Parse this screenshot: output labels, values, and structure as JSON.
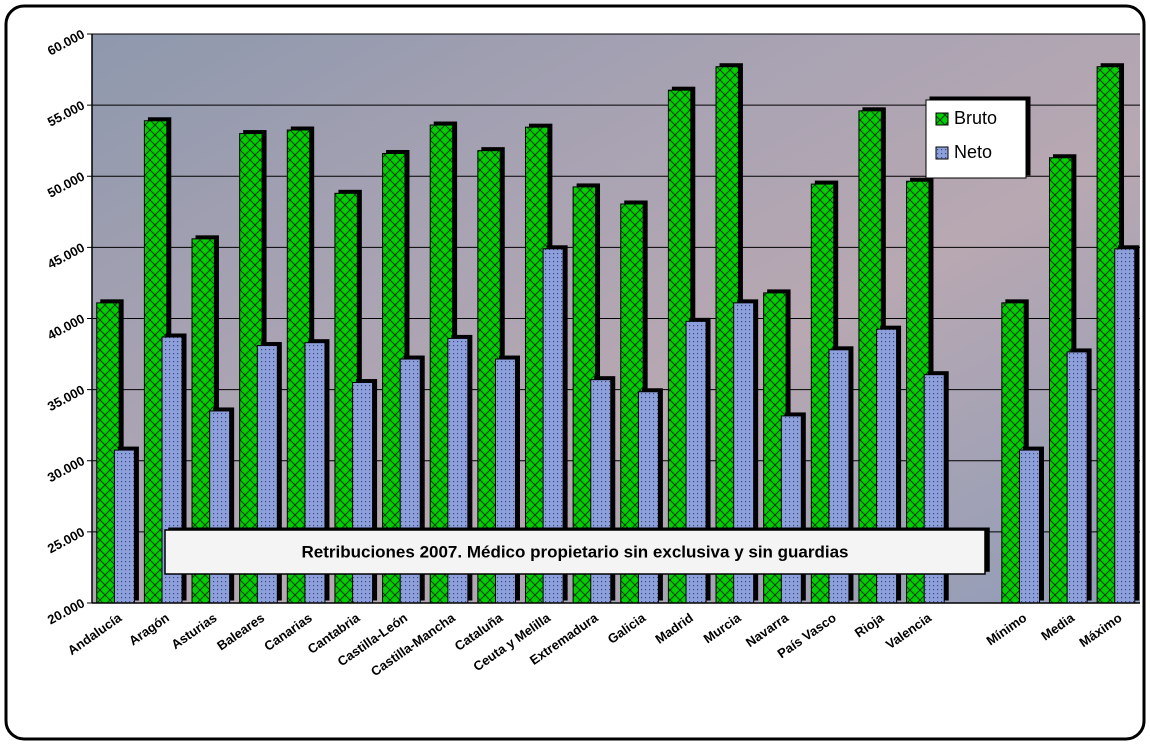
{
  "chart_data": {
    "type": "bar",
    "title": "Retribuciones 2007. Médico propietario sin exclusiva y sin guardias",
    "categories": [
      "Andalucía",
      "Aragón",
      "Asturias",
      "Baleares",
      "Canarias",
      "Cantabria",
      "Castilla-León",
      "Castilla-Mancha",
      "Cataluña",
      "Ceuta y Melilla",
      "Extremadura",
      "Galicia",
      "Madrid",
      "Murcia",
      "Navarra",
      "País Vasco",
      "Rioja",
      "Valencia",
      null,
      "Mínimo",
      "Media",
      "Máximo"
    ],
    "series": [
      {
        "name": "Bruto",
        "color": "#00d000",
        "values": [
          41100,
          53900,
          45600,
          53000,
          53250,
          48800,
          51600,
          53600,
          51800,
          53450,
          49250,
          48050,
          56050,
          57700,
          41800,
          49450,
          54600,
          49650,
          null,
          41100,
          51300,
          57700
        ]
      },
      {
        "name": "Neto",
        "color": "#8ea0dc",
        "values": [
          30750,
          38700,
          33500,
          38100,
          38300,
          35500,
          37150,
          38600,
          37150,
          44900,
          35700,
          34850,
          39800,
          41100,
          33150,
          37800,
          39250,
          36050,
          null,
          30750,
          37650,
          44900
        ]
      }
    ],
    "ylim": [
      20000,
      60000
    ],
    "yticks": [
      {
        "value": 20000,
        "label": "20.000"
      },
      {
        "value": 25000,
        "label": "25.000"
      },
      {
        "value": 30000,
        "label": "30.000"
      },
      {
        "value": 35000,
        "label": "35.000"
      },
      {
        "value": 40000,
        "label": "40.000"
      },
      {
        "value": 45000,
        "label": "45.000"
      },
      {
        "value": 50000,
        "label": "50.000"
      },
      {
        "value": 55000,
        "label": "55.000"
      },
      {
        "value": 60000,
        "label": "60.000"
      }
    ],
    "grid": true,
    "legend": "top-right"
  }
}
